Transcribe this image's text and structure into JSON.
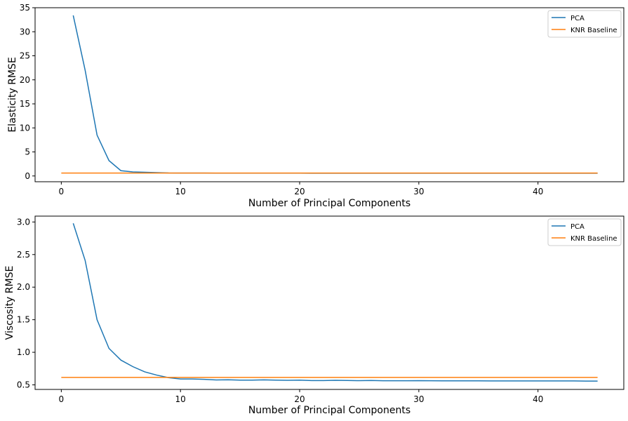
{
  "colors": {
    "pca": "#1f77b4",
    "knr": "#ff7f0e",
    "axis": "#000000",
    "background": "#ffffff"
  },
  "chart_data": [
    {
      "type": "line",
      "title": "",
      "xlabel": "Number of Principal Components",
      "ylabel": "Elasticity RMSE",
      "xlim": [
        -2.2,
        47.2
      ],
      "ylim": [
        -1.2,
        35
      ],
      "xticks": [
        0,
        10,
        20,
        30,
        40
      ],
      "yticks": [
        0,
        5,
        10,
        15,
        20,
        25,
        30,
        35
      ],
      "grid": false,
      "legend": "top-right",
      "series": [
        {
          "name": "PCA",
          "x": [
            1,
            2,
            3,
            4,
            5,
            6,
            7,
            8,
            9,
            10,
            11,
            12,
            13,
            14,
            15,
            16,
            17,
            18,
            19,
            20,
            21,
            22,
            23,
            24,
            25,
            26,
            27,
            28,
            29,
            30,
            31,
            32,
            33,
            34,
            35,
            36,
            37,
            38,
            39,
            40,
            41,
            42,
            43,
            44,
            45
          ],
          "y": [
            33.4,
            22.0,
            8.5,
            3.2,
            1.1,
            0.85,
            0.78,
            0.7,
            0.62,
            0.6,
            0.6,
            0.6,
            0.58,
            0.58,
            0.58,
            0.58,
            0.58,
            0.58,
            0.58,
            0.58,
            0.57,
            0.57,
            0.57,
            0.57,
            0.57,
            0.57,
            0.57,
            0.57,
            0.57,
            0.57,
            0.57,
            0.57,
            0.57,
            0.57,
            0.57,
            0.57,
            0.57,
            0.57,
            0.57,
            0.57,
            0.57,
            0.57,
            0.57,
            0.57,
            0.57
          ]
        },
        {
          "name": "KNR Baseline",
          "x": [
            0,
            45
          ],
          "y": [
            0.6,
            0.6
          ]
        }
      ]
    },
    {
      "type": "line",
      "title": "",
      "xlabel": "Number of Principal Components",
      "ylabel": "Viscosity RMSE",
      "xlim": [
        -2.2,
        47.2
      ],
      "ylim": [
        0.43,
        3.09
      ],
      "xticks": [
        0,
        10,
        20,
        30,
        40
      ],
      "yticks": [
        0.5,
        1.0,
        1.5,
        2.0,
        2.5,
        3.0
      ],
      "ytick_labels": [
        "0.5",
        "1.0",
        "1.5",
        "2.0",
        "2.5",
        "3.0"
      ],
      "grid": false,
      "legend": "top-right",
      "series": [
        {
          "name": "PCA",
          "x": [
            1,
            2,
            3,
            4,
            5,
            6,
            7,
            8,
            9,
            10,
            11,
            12,
            13,
            14,
            15,
            16,
            17,
            18,
            19,
            20,
            21,
            22,
            23,
            24,
            25,
            26,
            27,
            28,
            29,
            30,
            31,
            32,
            33,
            34,
            35,
            36,
            37,
            38,
            39,
            40,
            41,
            42,
            43,
            44,
            45
          ],
          "y": [
            2.98,
            2.41,
            1.5,
            1.06,
            0.88,
            0.78,
            0.7,
            0.65,
            0.61,
            0.59,
            0.59,
            0.585,
            0.575,
            0.578,
            0.572,
            0.573,
            0.577,
            0.572,
            0.57,
            0.572,
            0.566,
            0.566,
            0.57,
            0.567,
            0.564,
            0.567,
            0.563,
            0.563,
            0.563,
            0.565,
            0.563,
            0.562,
            0.562,
            0.562,
            0.562,
            0.561,
            0.561,
            0.561,
            0.56,
            0.56,
            0.56,
            0.56,
            0.56,
            0.558,
            0.558
          ]
        },
        {
          "name": "KNR Baseline",
          "x": [
            0,
            45
          ],
          "y": [
            0.615,
            0.615
          ]
        }
      ]
    }
  ]
}
